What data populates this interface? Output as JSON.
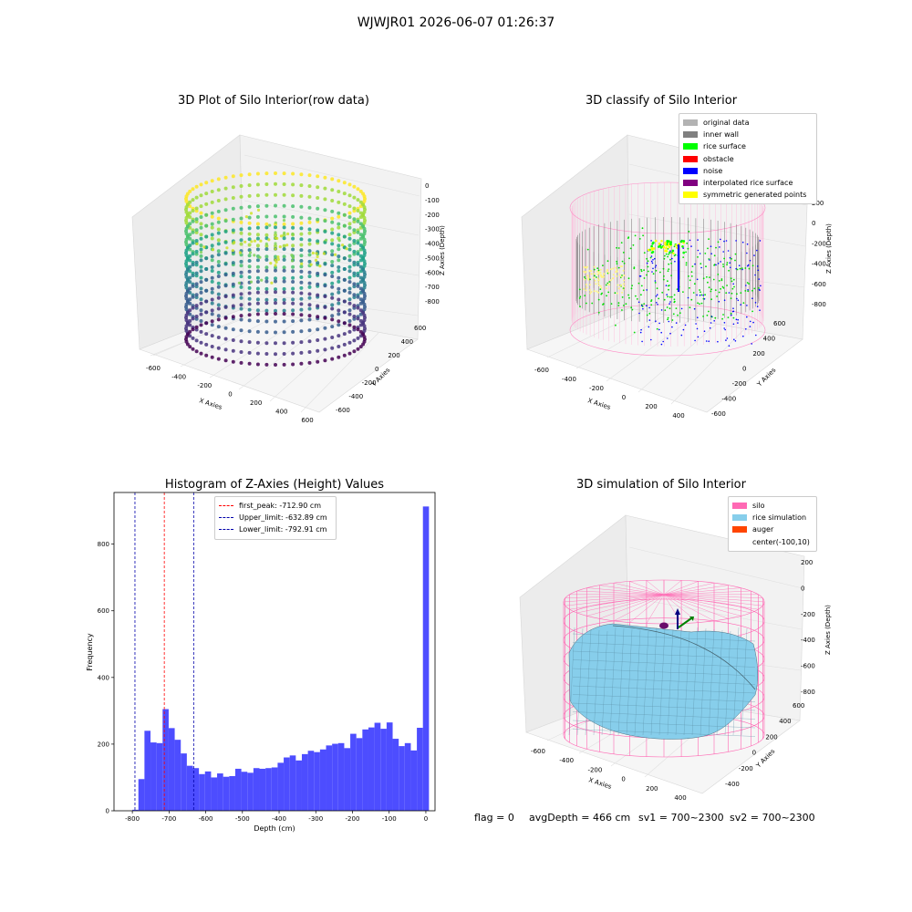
{
  "figure": {
    "suptitle": "WJWJR01 2026-06-07 01:26:37",
    "footer": {
      "flag": "flag = 0",
      "avg_depth": "avgDepth = 466 cm",
      "sv1": "sv1 = 700~2300",
      "sv2": "sv2 = 700~2300"
    }
  },
  "panels": {
    "raw": {
      "title": "3D Plot of Silo Interior(row data)",
      "xlabel": "X Axies",
      "ylabel": "Y Axies",
      "zlabel": "Z Axies (Depth)",
      "x_ticks": [
        "-600",
        "-400",
        "-200",
        "0",
        "200",
        "400",
        "600"
      ],
      "y_ticks": [
        "-600",
        "-400",
        "-200",
        "0",
        "200",
        "400",
        "600"
      ],
      "z_ticks": [
        "0",
        "-100",
        "-200",
        "-300",
        "-400",
        "-500",
        "-600",
        "-700",
        "-800"
      ]
    },
    "classify": {
      "title": "3D classify of Silo Interior",
      "xlabel": "X Axies",
      "ylabel": "Y Axies",
      "zlabel": "Z Axies (Depth)",
      "x_ticks": [
        "-600",
        "-400",
        "-200",
        "0",
        "200",
        "400"
      ],
      "y_ticks": [
        "-600",
        "-400",
        "-200",
        "0",
        "200",
        "400",
        "600"
      ],
      "z_ticks": [
        "200",
        "0",
        "-200",
        "-400",
        "-600",
        "-800"
      ],
      "legend": [
        {
          "label": "original data",
          "color": "#b3b3b3"
        },
        {
          "label": "inner wall",
          "color": "#808080"
        },
        {
          "label": "rice surface",
          "color": "#00ff00"
        },
        {
          "label": "obstacle",
          "color": "#ff0000"
        },
        {
          "label": "noise",
          "color": "#0000ff"
        },
        {
          "label": "interpolated rice surface",
          "color": "#800080"
        },
        {
          "label": "symmetric generated points",
          "color": "#ffff00"
        }
      ]
    },
    "simulation": {
      "title": "3D simulation of Silo Interior",
      "xlabel": "X Axies",
      "ylabel": "Y Axies",
      "zlabel": "Z Axies (Depth)",
      "x_ticks": [
        "-600",
        "-400",
        "-200",
        "0",
        "200",
        "400"
      ],
      "y_ticks": [
        "-400",
        "-200",
        "0",
        "200",
        "400",
        "600"
      ],
      "z_ticks": [
        "200",
        "0",
        "-200",
        "-400",
        "-600",
        "-800"
      ],
      "legend": [
        {
          "label": "silo",
          "color": "#ff69b4"
        },
        {
          "label": "rice simulation",
          "color": "#87ceeb"
        },
        {
          "label": "auger",
          "color": "#ff4500"
        },
        {
          "label": "center(-100,10)",
          "color": ""
        }
      ]
    }
  },
  "chart_data": [
    {
      "type": "histogram",
      "title": "Histogram of Z-Axies (Height) Values",
      "xlabel": "Depth (cm)",
      "ylabel": "Frequency",
      "xlim": [
        -850,
        25
      ],
      "ylim": [
        0,
        955
      ],
      "x_ticks": [
        -800,
        -700,
        -600,
        -500,
        -400,
        -300,
        -200,
        -100,
        0
      ],
      "y_ticks": [
        0,
        200,
        400,
        600,
        800
      ],
      "bar_color": "#4d4dff",
      "bins_start": -800,
      "bin_width": 16.5,
      "values": [
        3,
        95,
        240,
        205,
        203,
        305,
        248,
        213,
        172,
        135,
        128,
        110,
        118,
        100,
        112,
        102,
        104,
        126,
        117,
        114,
        128,
        126,
        128,
        130,
        144,
        160,
        166,
        151,
        170,
        180,
        176,
        184,
        196,
        201,
        203,
        188,
        231,
        218,
        244,
        250,
        264,
        246,
        265,
        216,
        194,
        203,
        181,
        249,
        913
      ],
      "vlines": [
        {
          "label": "first_peak: -712.90 cm",
          "x": -712.9,
          "color": "#ff0000"
        },
        {
          "label": "Upper_limit: -632.89 cm",
          "x": -632.89,
          "color": "#0000aa"
        },
        {
          "label": "Lower_limit: -792.91 cm",
          "x": -792.91,
          "color": "#0000aa"
        }
      ],
      "legend_position": "top-center"
    }
  ]
}
